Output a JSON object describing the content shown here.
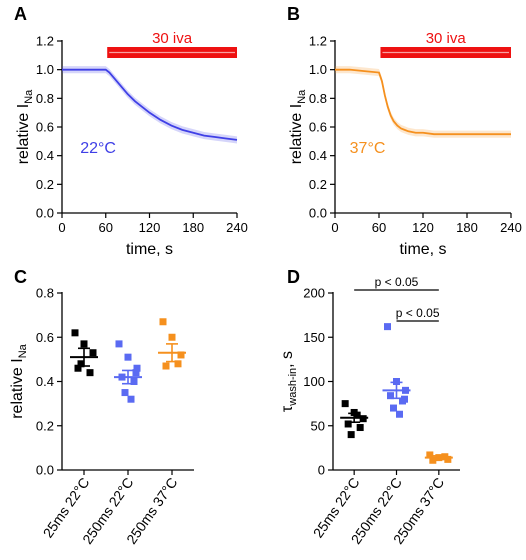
{
  "colors": {
    "blue": "#3f3fe6",
    "orange": "#f5901e",
    "bar_red": "#ee1111",
    "black": "#000000",
    "blue_sq": "#5a6af2"
  },
  "chart_data": [
    {
      "panel": "A",
      "type": "line",
      "xlabel": "time, s",
      "ylabel_main": "relative I",
      "ylabel_sub": "Na",
      "xlim": [
        0,
        240
      ],
      "ylim": [
        0,
        1.2
      ],
      "xticks": [
        "0",
        "60",
        "120",
        "180",
        "240"
      ],
      "yticks": [
        "0.0",
        "0.2",
        "0.4",
        "0.6",
        "0.8",
        "1.0",
        "1.2"
      ],
      "bar": {
        "label": "30 iva",
        "x_start": 62,
        "x_end": 240
      },
      "annotation": "22°C",
      "series": [
        {
          "color": "blue",
          "x": [
            0,
            10,
            20,
            30,
            40,
            50,
            60,
            65,
            70,
            80,
            90,
            100,
            110,
            120,
            135,
            150,
            165,
            180,
            195,
            210,
            225,
            240
          ],
          "y": [
            1.0,
            1.0,
            1.0,
            1.0,
            1.0,
            1.0,
            1.0,
            0.98,
            0.95,
            0.89,
            0.83,
            0.78,
            0.74,
            0.7,
            0.65,
            0.61,
            0.58,
            0.56,
            0.54,
            0.53,
            0.52,
            0.51
          ]
        }
      ]
    },
    {
      "panel": "B",
      "type": "line",
      "xlabel": "time, s",
      "ylabel_main": "relative I",
      "ylabel_sub": "Na",
      "xlim": [
        0,
        240
      ],
      "ylim": [
        0,
        1.2
      ],
      "xticks": [
        "0",
        "60",
        "120",
        "180",
        "240"
      ],
      "yticks": [
        "0.0",
        "0.2",
        "0.4",
        "0.6",
        "0.8",
        "1.0",
        "1.2"
      ],
      "bar": {
        "label": "30 iva",
        "x_start": 62,
        "x_end": 240
      },
      "annotation": "37°C",
      "series": [
        {
          "color": "orange",
          "x": [
            0,
            20,
            40,
            60,
            64,
            68,
            72,
            76,
            80,
            85,
            90,
            95,
            100,
            110,
            120,
            135,
            150,
            165,
            180,
            200,
            220,
            240
          ],
          "y": [
            1.0,
            1.0,
            0.99,
            0.98,
            0.92,
            0.82,
            0.74,
            0.68,
            0.64,
            0.61,
            0.59,
            0.58,
            0.57,
            0.56,
            0.56,
            0.55,
            0.55,
            0.55,
            0.55,
            0.55,
            0.55,
            0.55
          ]
        }
      ]
    },
    {
      "panel": "C",
      "type": "scatter",
      "ylabel_main": "relative I",
      "ylabel_sub": "Na",
      "ylim": [
        0,
        0.8
      ],
      "yticks": [
        "0.0",
        "0.2",
        "0.4",
        "0.6",
        "0.8"
      ],
      "categories": [
        "25ms 22°C",
        "250ms 22°C",
        "250ms 37°C"
      ],
      "groups": [
        {
          "color": "black",
          "mean": 0.51,
          "sem": 0.04,
          "points": [
            0.62,
            0.57,
            0.53,
            0.46,
            0.44,
            0.48
          ]
        },
        {
          "color": "blue_sq",
          "mean": 0.42,
          "sem": 0.03,
          "points": [
            0.57,
            0.51,
            0.46,
            0.42,
            0.4,
            0.35,
            0.32,
            0.44
          ]
        },
        {
          "color": "orange",
          "mean": 0.53,
          "sem": 0.04,
          "points": [
            0.67,
            0.6,
            0.52,
            0.47,
            0.48
          ]
        }
      ]
    },
    {
      "panel": "D",
      "type": "scatter",
      "ylabel_main": "τ",
      "ylabel_sub": "wash-in",
      "ylabel_tail": ", s",
      "ylim": [
        0,
        200
      ],
      "yticks": [
        "0",
        "50",
        "100",
        "150",
        "200"
      ],
      "categories": [
        "25ms 22°C",
        "250ms 22°C",
        "250ms 37°C"
      ],
      "groups": [
        {
          "color": "black",
          "mean": 59,
          "sem": 5,
          "points": [
            75,
            65,
            58,
            52,
            48,
            40,
            62
          ]
        },
        {
          "color": "blue_sq",
          "mean": 90,
          "sem": 9,
          "points": [
            162,
            100,
            90,
            84,
            78,
            70,
            63,
            80
          ]
        },
        {
          "color": "orange",
          "mean": 14,
          "sem": 2,
          "points": [
            17,
            14,
            12,
            11,
            15
          ]
        }
      ],
      "significance": [
        {
          "label": "p < 0.05",
          "from": 0,
          "to": 2
        },
        {
          "label": "p < 0.05",
          "from": 1,
          "to": 2
        }
      ]
    }
  ]
}
